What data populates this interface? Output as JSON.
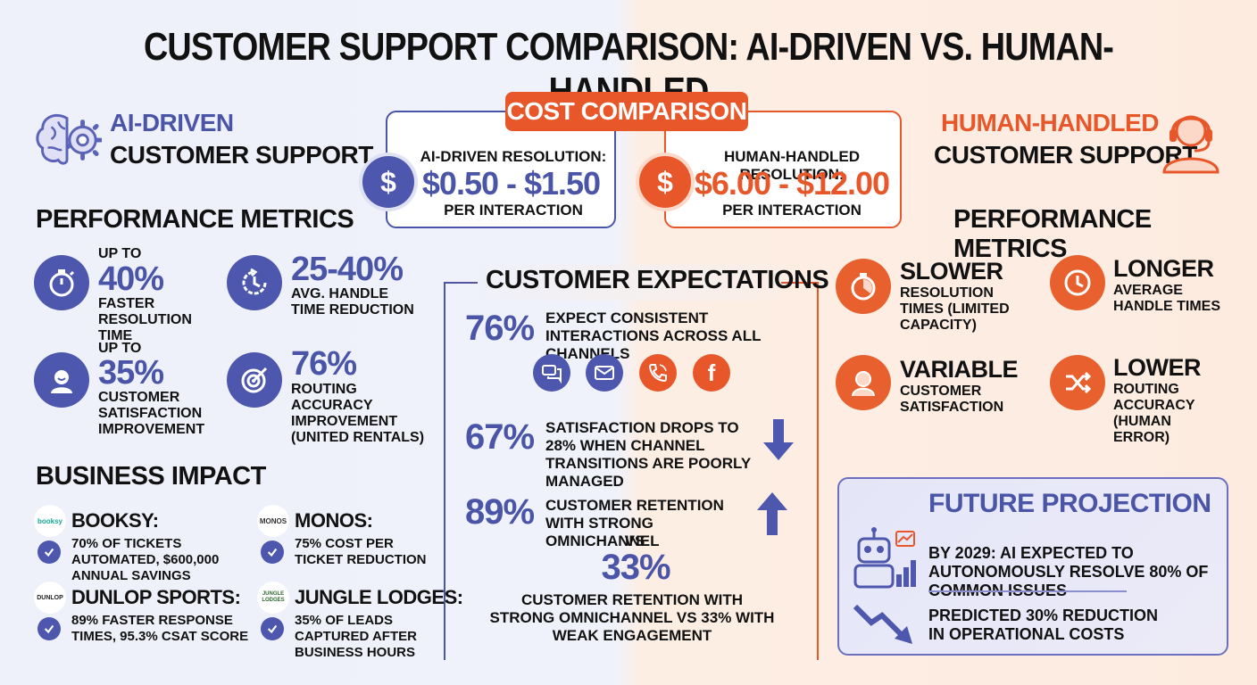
{
  "title": "CUSTOMER SUPPORT COMPARISON: AI-DRIVEN VS. HUMAN-HANDLED",
  "colors": {
    "ai_blue": "#4a55a8",
    "human_orange": "#e8572a"
  },
  "ai": {
    "title_top": "AI-DRIVEN",
    "title_bottom": "CUSTOMER SUPPORT",
    "icon": "brain-gear-icon",
    "metrics_heading": "PERFORMANCE METRICS",
    "metrics": [
      {
        "icon": "stopwatch-icon",
        "small": "UP TO",
        "big": "40%",
        "desc": "FASTER RESOLUTION TIME"
      },
      {
        "icon": "clock-arrow-icon",
        "small": "",
        "big": "25-40%",
        "desc": "AVG. HANDLE TIME REDUCTION"
      },
      {
        "icon": "happy-person-icon",
        "small": "UP TO",
        "big": "35%",
        "desc": "CUSTOMER SATISFACTION IMPROVEMENT"
      },
      {
        "icon": "target-icon",
        "small": "",
        "big": "76%",
        "desc": "ROUTING ACCURACY IMPROVEMENT (UNITED RENTALS)"
      }
    ]
  },
  "cost": {
    "label": "COST COMPARISON",
    "ai": {
      "head": "AI-DRIVEN RESOLUTION:",
      "price": "$0.50 - $1.50",
      "per": "PER INTERACTION"
    },
    "human": {
      "head": "HUMAN-HANDLED RESOLUTION:",
      "price": "$6.00 - $12.00",
      "per": "PER INTERACTION"
    },
    "dollar_symbol": "$"
  },
  "human": {
    "title_top": "HUMAN-HANDLED",
    "title_bottom": "CUSTOMER SUPPORT",
    "icon": "headset-agent-icon",
    "metrics_heading": "PERFORMANCE METRICS",
    "metrics": [
      {
        "icon": "slow-stopwatch-icon",
        "title": "SLOWER",
        "desc": "RESOLUTION TIMES (LIMITED CAPACITY)"
      },
      {
        "icon": "clock-icon",
        "title": "LONGER",
        "desc": "AVERAGE HANDLE TIMES"
      },
      {
        "icon": "person-icon",
        "title": "VARIABLE",
        "desc": "CUSTOMER SATISFACTION"
      },
      {
        "icon": "shuffle-icon",
        "title": "LOWER",
        "desc": "ROUTING ACCURACY (HUMAN ERROR)"
      }
    ]
  },
  "expectations": {
    "heading": "CUSTOMER EXPECTATIONS",
    "items": [
      {
        "pct": "76%",
        "text": "EXPECT CONSISTENT INTERACTIONS ACROSS ALL CHANNELS"
      },
      {
        "pct": "67%",
        "text": "SATISFACTION DROPS TO 28% WHEN CHANNEL TRANSITIONS ARE POORLY MANAGED"
      },
      {
        "pct": "89%",
        "text": "CUSTOMER RETENTION WITH STRONG OMNICHANNEL"
      }
    ],
    "vs": "VS",
    "pct2": "33%",
    "footer": "CUSTOMER RETENTION WITH STRONG OMNICHANNEL VS 33% WITH WEAK ENGAGEMENT",
    "channels": [
      "chat-icon",
      "email-icon",
      "phone-icon",
      "facebook-icon"
    ],
    "facebook_letter": "f"
  },
  "business": {
    "heading": "BUSINESS IMPACT",
    "items": [
      {
        "logo": "booksy",
        "name": "BOOKSY:",
        "desc": "70% OF TICKETS AUTOMATED, $600,000 ANNUAL SAVINGS"
      },
      {
        "logo": "MONOS",
        "name": "MONOS:",
        "desc": "75% COST PER TICKET REDUCTION"
      },
      {
        "logo": "DUNLOP",
        "name": "DUNLOP SPORTS:",
        "desc": "89% FASTER RESPONSE TIMES, 95.3% CSAT SCORE"
      },
      {
        "logo": "JUNGLE LODGES",
        "name": "JUNGLE LODGES:",
        "desc": "35% OF LEADS CAPTURED AFTER BUSINESS HOURS"
      }
    ]
  },
  "future": {
    "heading": "FUTURE PROJECTION",
    "items": [
      {
        "icon": "robot-chart-icon",
        "text": "BY 2029: AI EXPECTED TO AUTONOMOUSLY RESOLVE 80% OF COMMON ISSUES"
      },
      {
        "icon": "trend-down-icon",
        "text": "PREDICTED 30% REDUCTION IN OPERATIONAL COSTS"
      }
    ]
  }
}
